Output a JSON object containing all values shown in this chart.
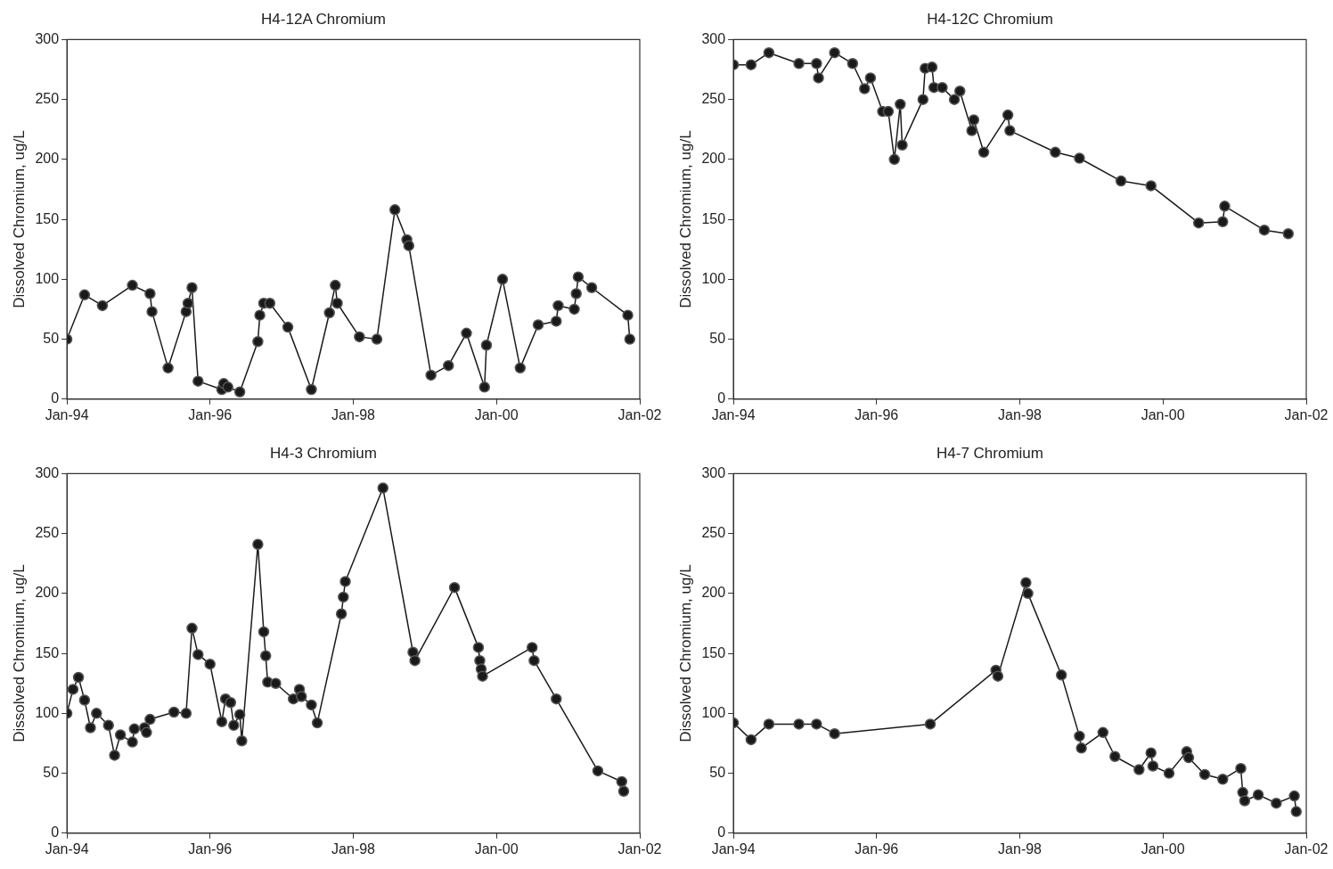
{
  "chart_data": [
    {
      "type": "line",
      "title": "H4-12A Chromium",
      "ylabel": "Dissolved Chromium, ug/L",
      "marker": "circle",
      "line_style": "solid",
      "grid": false,
      "color": "#1a1a1a",
      "x": [
        "1994-01",
        "1994-04",
        "1994-07",
        "1994-12",
        "1995-03-01",
        "1995-03-11",
        "1995-06",
        "1995-09-01",
        "1995-09-11",
        "1995-10",
        "1995-11",
        "1996-03-01",
        "1996-03-11",
        "1996-04",
        "1996-06",
        "1996-09-01",
        "1996-09-11",
        "1996-10",
        "1996-11",
        "1997-02",
        "1997-06",
        "1997-09",
        "1997-10-01",
        "1997-10-11",
        "1998-02",
        "1998-05",
        "1998-08",
        "1998-10-01",
        "1998-10-11",
        "1999-02",
        "1999-05",
        "1999-08",
        "1999-11-01",
        "1999-11-11",
        "2000-02",
        "2000-05",
        "2000-08",
        "2000-11-01",
        "2000-11-11",
        "2001-02-01",
        "2001-02-11",
        "2001-02-21",
        "2001-05",
        "2001-11-01",
        "2001-11-11"
      ],
      "values": [
        50,
        87,
        78,
        95,
        88,
        73,
        26,
        73,
        80,
        93,
        15,
        8,
        13,
        10,
        6,
        48,
        70,
        80,
        80,
        60,
        8,
        72,
        95,
        80,
        52,
        50,
        158,
        133,
        128,
        20,
        28,
        55,
        10,
        45,
        100,
        26,
        62,
        65,
        78,
        75,
        88,
        102,
        93,
        70,
        50
      ],
      "xlim": [
        "1994-01",
        "2002-01"
      ],
      "xticks": [
        {
          "value": "1994-01",
          "label": "Jan-94"
        },
        {
          "value": "1996-01",
          "label": "Jan-96"
        },
        {
          "value": "1998-01",
          "label": "Jan-98"
        },
        {
          "value": "2000-01",
          "label": "Jan-00"
        },
        {
          "value": "2002-01",
          "label": "Jan-02"
        }
      ],
      "ylim": [
        0,
        300
      ],
      "yticks": [
        0,
        50,
        100,
        150,
        200,
        250,
        300
      ]
    },
    {
      "type": "line",
      "title": "H4-12C Chromium",
      "ylabel": "Dissolved Chromium, ug/L",
      "marker": "circle",
      "line_style": "solid",
      "grid": false,
      "color": "#1a1a1a",
      "x": [
        "1994-01",
        "1994-04",
        "1994-07",
        "1994-12",
        "1995-03-01",
        "1995-03-11",
        "1995-06",
        "1995-09",
        "1995-11",
        "1995-12",
        "1996-02",
        "1996-03",
        "1996-04",
        "1996-05-01",
        "1996-05-11",
        "1996-08-25",
        "1996-09-05",
        "1996-10-10",
        "1996-10-20",
        "1996-12",
        "1997-02",
        "1997-03",
        "1997-05-01",
        "1997-05-11",
        "1997-07",
        "1997-11-01",
        "1997-11-11",
        "1998-07",
        "1998-11",
        "1999-06",
        "1999-11",
        "2000-07",
        "2000-11-01",
        "2000-11-11",
        "2001-06",
        "2001-10"
      ],
      "values": [
        279,
        279,
        289,
        280,
        280,
        268,
        289,
        280,
        259,
        268,
        240,
        240,
        200,
        246,
        212,
        250,
        276,
        277,
        260,
        260,
        250,
        257,
        224,
        233,
        206,
        237,
        224,
        206,
        201,
        182,
        178,
        147,
        148,
        161,
        141,
        138
      ],
      "xlim": [
        "1994-01",
        "2002-01"
      ],
      "xticks": [
        {
          "value": "1994-01",
          "label": "Jan-94"
        },
        {
          "value": "1996-01",
          "label": "Jan-96"
        },
        {
          "value": "1998-01",
          "label": "Jan-98"
        },
        {
          "value": "2000-01",
          "label": "Jan-00"
        },
        {
          "value": "2002-01",
          "label": "Jan-02"
        }
      ],
      "ylim": [
        0,
        300
      ],
      "yticks": [
        0,
        50,
        100,
        150,
        200,
        250,
        300
      ]
    },
    {
      "type": "line",
      "title": "H4-3 Chromium",
      "ylabel": "Dissolved Chromium, ug/L",
      "marker": "circle",
      "line_style": "solid",
      "grid": false,
      "color": "#1a1a1a",
      "x": [
        "1994-01",
        "1994-02",
        "1994-03",
        "1994-04",
        "1994-05",
        "1994-06",
        "1994-08",
        "1994-09",
        "1994-10",
        "1994-12-01",
        "1994-12-11",
        "1995-02-01",
        "1995-02-11",
        "1995-03",
        "1995-07",
        "1995-09",
        "1995-10",
        "1995-11",
        "1996-01",
        "1996-03",
        "1996-03-20",
        "1996-04-15",
        "1996-05",
        "1996-06-01",
        "1996-06-11",
        "1996-09",
        "1996-10-01",
        "1996-10-11",
        "1996-10-21",
        "1996-12",
        "1997-03",
        "1997-04-01",
        "1997-04-11",
        "1997-06",
        "1997-07",
        "1997-11-01",
        "1997-11-11",
        "1997-11-21",
        "1998-06",
        "1998-11-01",
        "1998-11-11",
        "1999-06",
        "1999-10-01",
        "1999-10-08",
        "1999-10-15",
        "1999-10-22",
        "2000-07-01",
        "2000-07-11",
        "2000-11",
        "2001-06",
        "2001-10-01",
        "2001-10-11"
      ],
      "values": [
        100,
        120,
        130,
        111,
        88,
        100,
        90,
        65,
        82,
        76,
        87,
        88,
        84,
        95,
        101,
        100,
        171,
        149,
        141,
        93,
        112,
        109,
        90,
        99,
        77,
        241,
        168,
        148,
        126,
        125,
        112,
        120,
        114,
        107,
        92,
        183,
        197,
        210,
        288,
        151,
        144,
        205,
        155,
        144,
        137,
        131,
        155,
        144,
        112,
        52,
        43,
        35
      ],
      "xlim": [
        "1994-01",
        "2002-01"
      ],
      "xticks": [
        {
          "value": "1994-01",
          "label": "Jan-94"
        },
        {
          "value": "1996-01",
          "label": "Jan-96"
        },
        {
          "value": "1998-01",
          "label": "Jan-98"
        },
        {
          "value": "2000-01",
          "label": "Jan-00"
        },
        {
          "value": "2002-01",
          "label": "Jan-02"
        }
      ],
      "ylim": [
        0,
        300
      ],
      "yticks": [
        0,
        50,
        100,
        150,
        200,
        250,
        300
      ]
    },
    {
      "type": "line",
      "title": "H4-7 Chromium",
      "ylabel": "Dissolved Chromium, ug/L",
      "marker": "circle",
      "line_style": "solid",
      "grid": false,
      "color": "#1a1a1a",
      "x": [
        "1994-01",
        "1994-04",
        "1994-07",
        "1994-12",
        "1995-03",
        "1995-06",
        "1996-10",
        "1997-09-01",
        "1997-09-11",
        "1998-02-01",
        "1998-02-11",
        "1998-08",
        "1998-11-01",
        "1998-11-11",
        "1999-03",
        "1999-05",
        "1999-09",
        "1999-11-01",
        "1999-11-11",
        "2000-02",
        "2000-05-01",
        "2000-05-11",
        "2000-08",
        "2000-11",
        "2001-02-01",
        "2001-02-11",
        "2001-02-21",
        "2001-05",
        "2001-08",
        "2001-11-01",
        "2001-11-11"
      ],
      "values": [
        92,
        78,
        91,
        91,
        91,
        83,
        91,
        136,
        131,
        209,
        200,
        132,
        81,
        71,
        84,
        64,
        53,
        67,
        56,
        50,
        68,
        63,
        49,
        45,
        54,
        34,
        27,
        32,
        25,
        31,
        18
      ],
      "xlim": [
        "1994-01",
        "2002-01"
      ],
      "xticks": [
        {
          "value": "1994-01",
          "label": "Jan-94"
        },
        {
          "value": "1996-01",
          "label": "Jan-96"
        },
        {
          "value": "1998-01",
          "label": "Jan-98"
        },
        {
          "value": "2000-01",
          "label": "Jan-00"
        },
        {
          "value": "2002-01",
          "label": "Jan-02"
        }
      ],
      "ylim": [
        0,
        300
      ],
      "yticks": [
        0,
        50,
        100,
        150,
        200,
        250,
        300
      ]
    }
  ]
}
